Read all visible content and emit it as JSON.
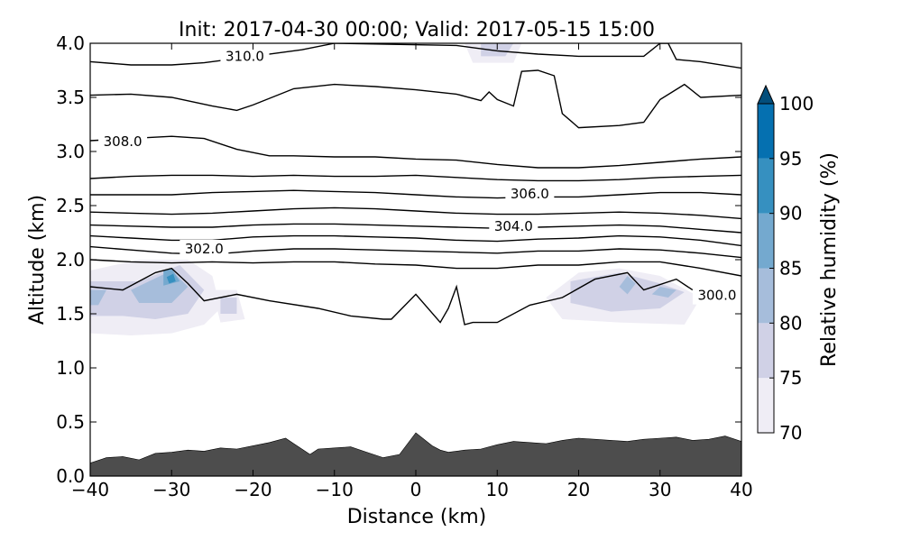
{
  "chart_data": {
    "type": "contour",
    "title": "Init: 2017-04-30 00:00; Valid: 2017-05-15 15:00",
    "xlabel": "Distance (km)",
    "ylabel": "Altitude (km)",
    "xlim": [
      -40,
      40
    ],
    "ylim": [
      0.0,
      4.0
    ],
    "xticks": [
      "−40",
      "−30",
      "−20",
      "−10",
      "0",
      "10",
      "20",
      "30",
      "40"
    ],
    "yticks": [
      "0.0",
      "0.5",
      "1.0",
      "1.5",
      "2.0",
      "2.5",
      "3.0",
      "3.5",
      "4.0"
    ],
    "grid": false,
    "colorbar": {
      "label": "Relative humidity (%)",
      "levels": [
        70,
        75,
        80,
        85,
        90,
        95,
        100
      ],
      "tick_labels": [
        "70",
        "75",
        "80",
        "85",
        "90",
        "95",
        "100"
      ],
      "colors": [
        "#efedf5",
        "#d0d1e6",
        "#a6bddb",
        "#74a9cf",
        "#3690c0",
        "#0570b0",
        "#034e7b"
      ],
      "extend": "max"
    },
    "contours": {
      "color": "#000000",
      "lines": [
        {
          "level": 300.0,
          "label": "300.0",
          "x": [
            -40,
            -36,
            -32,
            -30,
            -28,
            -26,
            -22,
            -18,
            -12,
            -8,
            -4,
            -3,
            0,
            3,
            4,
            5,
            6,
            7,
            10,
            14,
            18,
            22,
            26,
            28,
            32,
            34
          ],
          "y": [
            1.75,
            1.72,
            1.88,
            1.92,
            1.78,
            1.62,
            1.68,
            1.62,
            1.55,
            1.48,
            1.45,
            1.45,
            1.68,
            1.42,
            1.55,
            1.75,
            1.4,
            1.42,
            1.42,
            1.58,
            1.65,
            1.82,
            1.88,
            1.72,
            1.82,
            1.72
          ]
        },
        {
          "level": 301.0,
          "x": [
            -40,
            -35,
            -30,
            -25,
            -20,
            -15,
            -10,
            -5,
            0,
            5,
            10,
            15,
            20,
            25,
            30,
            35,
            40
          ],
          "y": [
            2.0,
            1.98,
            1.97,
            1.98,
            1.97,
            1.98,
            1.98,
            1.96,
            1.95,
            1.92,
            1.92,
            1.95,
            1.95,
            1.98,
            1.98,
            1.92,
            1.85
          ]
        },
        {
          "level": 302.0,
          "label": "302.0",
          "x": [
            -40,
            -35,
            -30,
            -25,
            -20,
            -15,
            -10,
            -5,
            0,
            5,
            10,
            15,
            20,
            25,
            30,
            35,
            40
          ],
          "y": [
            2.12,
            2.09,
            2.06,
            2.05,
            2.08,
            2.1,
            2.1,
            2.09,
            2.08,
            2.07,
            2.06,
            2.08,
            2.08,
            2.1,
            2.09,
            2.06,
            2.02
          ]
        },
        {
          "level": 303.0,
          "x": [
            -40,
            -35,
            -30,
            -25,
            -20,
            -15,
            -10,
            -5,
            0,
            5,
            10,
            15,
            20,
            25,
            30,
            35,
            40
          ],
          "y": [
            2.22,
            2.2,
            2.18,
            2.18,
            2.21,
            2.22,
            2.22,
            2.21,
            2.2,
            2.18,
            2.17,
            2.19,
            2.2,
            2.22,
            2.21,
            2.18,
            2.13
          ]
        },
        {
          "level": 304.0,
          "label": "304.0",
          "x": [
            -40,
            -35,
            -30,
            -25,
            -20,
            -15,
            -10,
            -5,
            0,
            5,
            10,
            15,
            20,
            25,
            30,
            35,
            40
          ],
          "y": [
            2.32,
            2.31,
            2.3,
            2.3,
            2.32,
            2.33,
            2.33,
            2.32,
            2.31,
            2.3,
            2.29,
            2.3,
            2.31,
            2.32,
            2.31,
            2.28,
            2.25
          ]
        },
        {
          "level": 305.0,
          "x": [
            -40,
            -35,
            -30,
            -25,
            -20,
            -15,
            -10,
            -5,
            0,
            5,
            10,
            15,
            20,
            25,
            30,
            35,
            40
          ],
          "y": [
            2.44,
            2.43,
            2.42,
            2.43,
            2.45,
            2.47,
            2.48,
            2.47,
            2.45,
            2.43,
            2.42,
            2.42,
            2.43,
            2.44,
            2.43,
            2.41,
            2.38
          ]
        },
        {
          "level": 306.0,
          "label": "306.0",
          "x": [
            -40,
            -35,
            -30,
            -25,
            -20,
            -15,
            -10,
            -5,
            0,
            5,
            10,
            15,
            20,
            25,
            30,
            35,
            40
          ],
          "y": [
            2.6,
            2.6,
            2.6,
            2.62,
            2.63,
            2.64,
            2.63,
            2.62,
            2.6,
            2.58,
            2.57,
            2.58,
            2.58,
            2.6,
            2.62,
            2.62,
            2.6
          ]
        },
        {
          "level": 307.0,
          "x": [
            -40,
            -35,
            -30,
            -25,
            -20,
            -15,
            -10,
            -5,
            0,
            5,
            10,
            15,
            20,
            25,
            30,
            35,
            40
          ],
          "y": [
            2.75,
            2.77,
            2.78,
            2.78,
            2.77,
            2.78,
            2.77,
            2.77,
            2.78,
            2.76,
            2.74,
            2.73,
            2.73,
            2.74,
            2.76,
            2.77,
            2.78
          ]
        },
        {
          "level": 308.0,
          "label": "308.0",
          "x": [
            -40,
            -35,
            -30,
            -26,
            -22,
            -18,
            -15,
            -10,
            -5,
            0,
            5,
            10,
            15,
            20,
            25,
            30,
            35,
            40
          ],
          "y": [
            3.1,
            3.12,
            3.14,
            3.12,
            3.02,
            2.96,
            2.96,
            2.95,
            2.95,
            2.93,
            2.92,
            2.88,
            2.85,
            2.85,
            2.87,
            2.9,
            2.93,
            2.95
          ]
        },
        {
          "level": 309.0,
          "x": [
            -40,
            -35,
            -30,
            -25,
            -22,
            -20,
            -15,
            -10,
            -5,
            0,
            5,
            8,
            9,
            10,
            12,
            13,
            15,
            17,
            18,
            20,
            25,
            28,
            30,
            33,
            35,
            40
          ],
          "y": [
            3.52,
            3.53,
            3.5,
            3.42,
            3.38,
            3.43,
            3.58,
            3.62,
            3.6,
            3.57,
            3.53,
            3.47,
            3.55,
            3.48,
            3.42,
            3.74,
            3.75,
            3.7,
            3.35,
            3.22,
            3.24,
            3.27,
            3.48,
            3.62,
            3.5,
            3.52
          ]
        },
        {
          "level": 310.0,
          "label": "310.0",
          "x": [
            -40,
            -35,
            -30,
            -26,
            -22,
            -20,
            -14,
            -10,
            5,
            10,
            15,
            20,
            28,
            30,
            31,
            32,
            35,
            40
          ],
          "y": [
            3.83,
            3.8,
            3.8,
            3.82,
            3.86,
            3.88,
            3.94,
            4.0,
            3.98,
            3.93,
            3.9,
            3.88,
            3.88,
            4.0,
            4.0,
            3.85,
            3.83,
            3.77
          ]
        }
      ]
    },
    "rh_shading": [
      {
        "level": 70,
        "polygons": [
          [
            [
              -40,
              1.9
            ],
            [
              -34,
              2.0
            ],
            [
              -28,
              2.0
            ],
            [
              -25,
              1.85
            ],
            [
              -24,
              1.55
            ],
            [
              -26,
              1.4
            ],
            [
              -30,
              1.32
            ],
            [
              -35,
              1.3
            ],
            [
              -40,
              1.32
            ]
          ],
          [
            [
              -25,
              1.72
            ],
            [
              -22,
              1.72
            ],
            [
              -21,
              1.45
            ],
            [
              -24,
              1.42
            ]
          ],
          [
            [
              16,
              1.65
            ],
            [
              20,
              1.88
            ],
            [
              25,
              1.92
            ],
            [
              30,
              1.85
            ],
            [
              35,
              1.65
            ],
            [
              33,
              1.4
            ],
            [
              25,
              1.42
            ],
            [
              18,
              1.45
            ]
          ],
          [
            [
              6,
              4.0
            ],
            [
              13,
              4.0
            ],
            [
              12,
              3.82
            ],
            [
              7,
              3.82
            ]
          ]
        ]
      },
      {
        "level": 75,
        "polygons": [
          [
            [
              -40,
              1.8
            ],
            [
              -34,
              1.8
            ],
            [
              -29,
              1.95
            ],
            [
              -26,
              1.72
            ],
            [
              -28,
              1.5
            ],
            [
              -32,
              1.45
            ],
            [
              -36,
              1.48
            ],
            [
              -40,
              1.48
            ]
          ],
          [
            [
              -24,
              1.65
            ],
            [
              -22,
              1.65
            ],
            [
              -22,
              1.5
            ],
            [
              -24,
              1.5
            ]
          ],
          [
            [
              19,
              1.8
            ],
            [
              25,
              1.88
            ],
            [
              30,
              1.78
            ],
            [
              33,
              1.7
            ],
            [
              30,
              1.55
            ],
            [
              24,
              1.52
            ],
            [
              19,
              1.6
            ]
          ],
          [
            [
              8,
              4.0
            ],
            [
              12,
              4.0
            ],
            [
              11,
              3.88
            ],
            [
              8,
              3.88
            ]
          ]
        ]
      },
      {
        "level": 80,
        "polygons": [
          [
            [
              -40,
              1.72
            ],
            [
              -38,
              1.72
            ],
            [
              -39,
              1.58
            ],
            [
              -40,
              1.58
            ]
          ],
          [
            [
              -35,
              1.72
            ],
            [
              -30,
              1.9
            ],
            [
              -28,
              1.75
            ],
            [
              -30,
              1.6
            ],
            [
              -34,
              1.6
            ]
          ],
          [
            [
              26,
              1.85
            ],
            [
              27,
              1.78
            ],
            [
              26,
              1.68
            ],
            [
              25,
              1.75
            ]
          ],
          [
            [
              30,
              1.75
            ],
            [
              32,
              1.72
            ],
            [
              31,
              1.65
            ],
            [
              29,
              1.68
            ]
          ]
        ]
      },
      {
        "level": 85,
        "polygons": [
          [
            [
              -31,
              1.9
            ],
            [
              -30,
              1.92
            ],
            [
              -29,
              1.8
            ],
            [
              -31,
              1.76
            ]
          ]
        ]
      },
      {
        "level": 90,
        "polygons": [
          [
            [
              -30.6,
              1.84
            ],
            [
              -29.8,
              1.87
            ],
            [
              -29.5,
              1.8
            ],
            [
              -30.3,
              1.78
            ]
          ]
        ]
      }
    ],
    "terrain": {
      "color": "#4d4d4d",
      "x": [
        -40,
        -38,
        -36,
        -34,
        -32,
        -30,
        -28,
        -26,
        -24,
        -22,
        -20,
        -18,
        -16,
        -15,
        -13,
        -12,
        -10,
        -8,
        -6,
        -4,
        -2,
        0,
        2,
        3,
        4,
        6,
        8,
        10,
        12,
        14,
        16,
        18,
        20,
        22,
        24,
        26,
        28,
        30,
        32,
        34,
        36,
        38,
        40
      ],
      "y": [
        0.12,
        0.17,
        0.18,
        0.15,
        0.21,
        0.22,
        0.24,
        0.23,
        0.26,
        0.25,
        0.28,
        0.31,
        0.35,
        0.3,
        0.2,
        0.25,
        0.26,
        0.27,
        0.22,
        0.17,
        0.2,
        0.4,
        0.28,
        0.24,
        0.22,
        0.24,
        0.25,
        0.29,
        0.32,
        0.31,
        0.3,
        0.33,
        0.35,
        0.34,
        0.33,
        0.32,
        0.34,
        0.35,
        0.36,
        0.33,
        0.34,
        0.37,
        0.32
      ]
    }
  }
}
